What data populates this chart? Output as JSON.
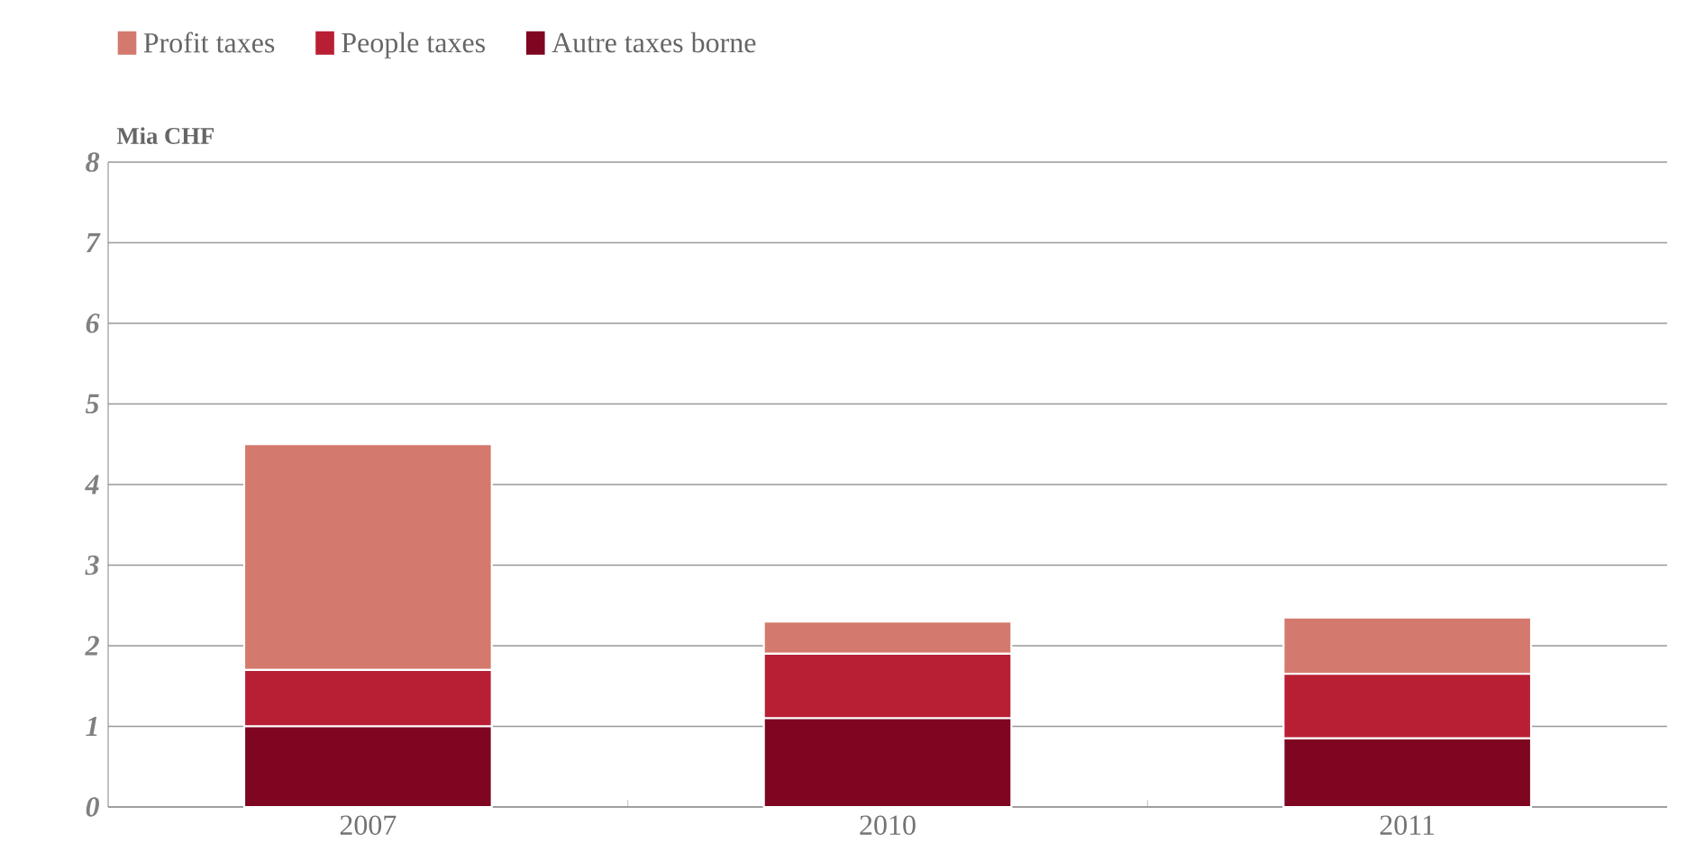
{
  "chart_data": {
    "type": "bar",
    "stacked": true,
    "ylabel": "Mia CHF",
    "categories": [
      "2007",
      "2010",
      "2011"
    ],
    "series": [
      {
        "name": "Autre taxes borne",
        "color": "#7e0621",
        "values": [
          1.0,
          1.1,
          0.85
        ]
      },
      {
        "name": "People taxes",
        "color": "#b81f35",
        "values": [
          0.7,
          0.8,
          0.8
        ]
      },
      {
        "name": "Profit taxes",
        "color": "#d4796e",
        "values": [
          2.8,
          0.4,
          0.7
        ]
      }
    ],
    "ylim": [
      0,
      8
    ],
    "yticks": [
      0,
      1,
      2,
      3,
      4,
      5,
      6,
      7,
      8
    ],
    "grid": "y",
    "legend": "top left"
  }
}
